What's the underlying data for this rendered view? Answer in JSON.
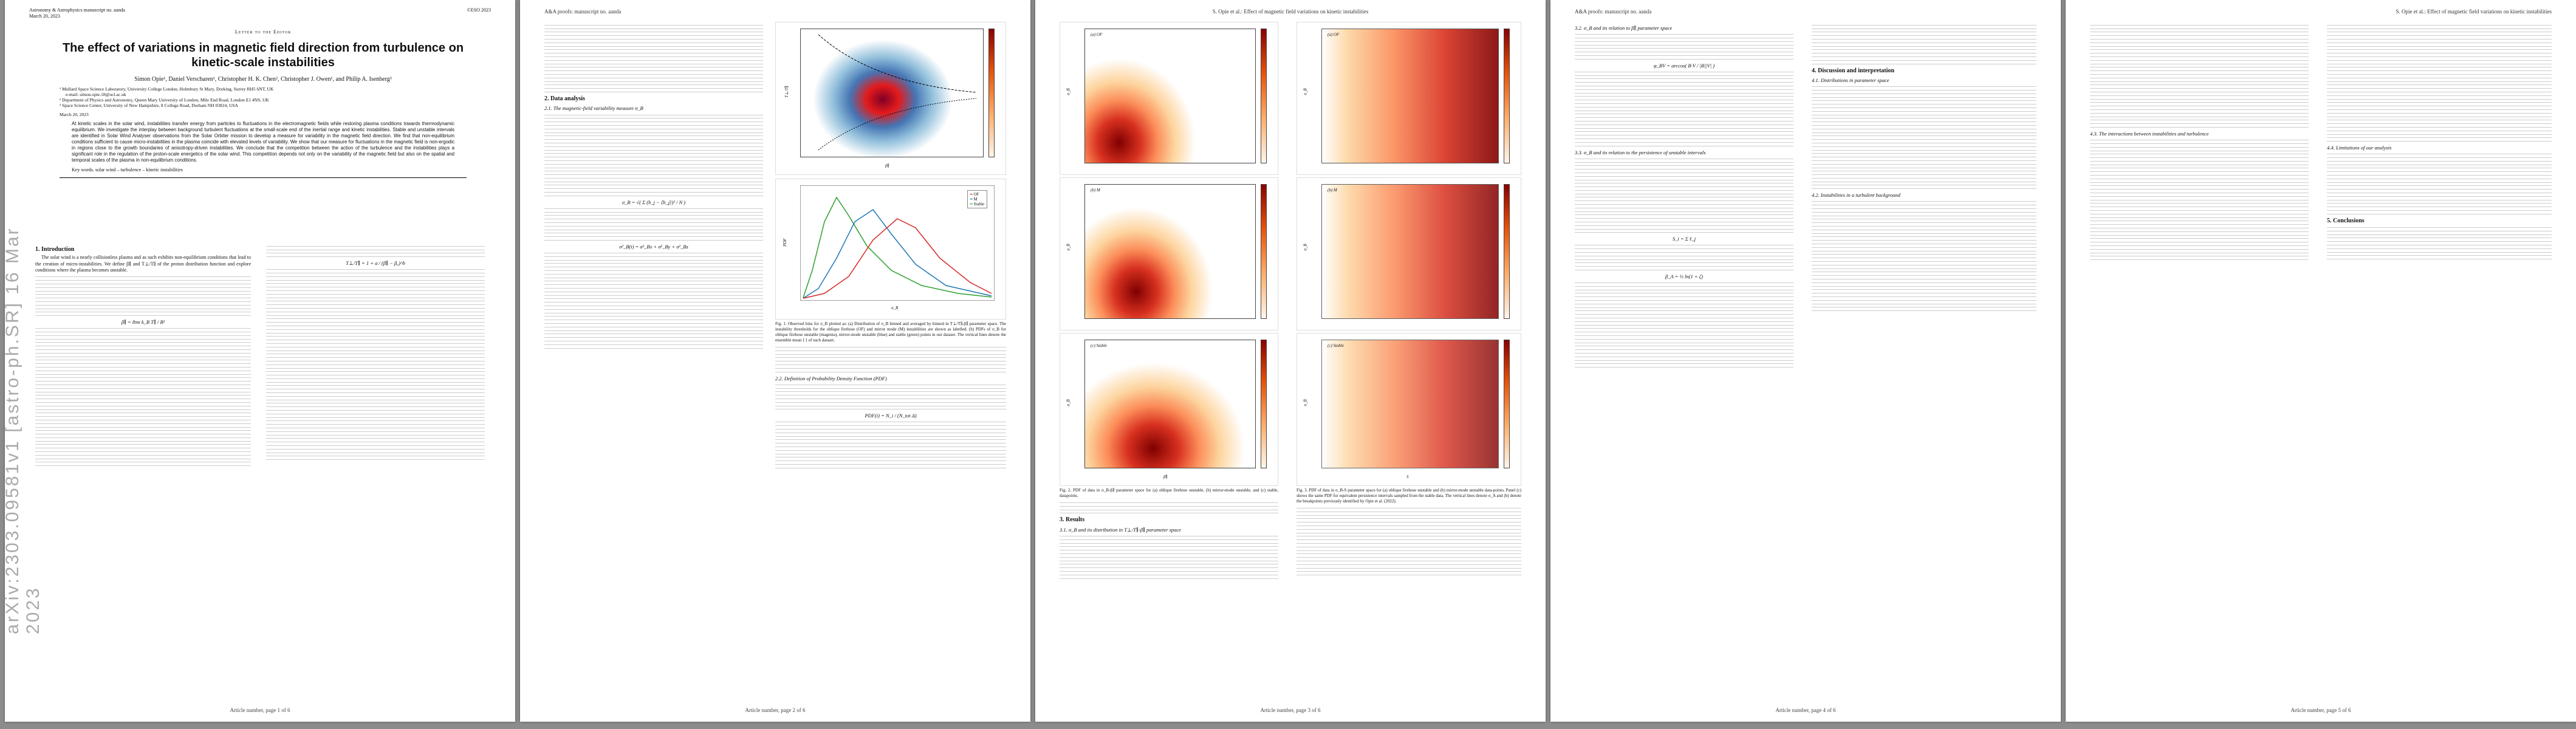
{
  "journal": "Astronomy & Astrophysics manuscript no. aanda",
  "date_header": "March 20, 2023",
  "copyright": "©ESO 2023",
  "running_header_left": "A&A proofs: manuscript no. aanda",
  "running_header_right": "S. Opie et al.: Effect of magnetic field variations on kinetic instabilities",
  "letter_label": "Letter to the Editor",
  "title": "The effect of variations in magnetic field direction from turbulence on kinetic-scale instabilities",
  "authors": "Simon Opie¹, Daniel Verscharen¹, Christopher H. K. Chen², Christopher J. Owen¹, and Philip A. Isenberg³",
  "affiliations": [
    "¹ Mullard Space Science Laboratory, University College London, Holmbury St Mary, Dorking, Surrey RH5 6NT, UK",
    "e-mail: simon.opie.18@ucl.ac.uk",
    "² Department of Physics and Astronomy, Queen Mary University of London, Mile End Road, London E1 4NS, UK",
    "³ Space Science Center, University of New Hampshire, 8 College Road, Durham NH 03824, USA"
  ],
  "date_line": "March 20, 2023",
  "abstract": "At kinetic scales in the solar wind, instabilities transfer energy from particles to fluctuations in the electromagnetic fields while restoring plasma conditions towards thermodynamic equilibrium. We investigate the interplay between background turbulent fluctuations at the small-scale end of the inertial range and kinetic instabilities. Stable and unstable intervals are identified in Solar Wind Analyser observations from the Solar Orbiter mission to develop a measure for variability in the magnetic field direction. We find that non-equilibrium conditions sufficient to cause micro-instabilities in the plasma coincide with elevated levels of variability. We show that our measure for fluctuations in the magnetic field is non-ergodic in regions close to the growth boundaries of anisotropy-driven instabilities. We conclude that the competition between the action of the turbulence and the instabilities plays a significant role in the regulation of the proton-scale energetics of the solar wind. This competition depends not only on the variability of the magnetic field but also on the spatial and temporal scales of the plasma in non-equilibrium conditions.",
  "keywords": "Key words. solar wind – turbulence – kinetic instabilities",
  "arxiv_id": "arXiv:2303.09581v1 [astro-ph.SR] 16 Mar 2023",
  "sections": {
    "intro": "1. Introduction",
    "data": "2. Data analysis",
    "data_sub1": "2.1. The magnetic-field variability measure σ_B",
    "data_sub2": "2.2. Definition of Probability Density Function (PDF)",
    "results": "3. Results",
    "res_sub1": "3.1. σ_B and its distribution in T⊥/T∥-β∥ parameter space",
    "res_sub2": "3.2. σ_B and its relation to β∥ parameter space",
    "res_sub3": "3.3. σ_B and its relation to the persistence of unstable intervals",
    "discussion": "4. Discussion and interpretation",
    "disc_sub1": "4.1. Distributions in parameter space",
    "disc_sub2": "4.2. Instabilities in a turbulent background",
    "disc_sub3": "4.3. The interactions between instabilities and turbulence",
    "disc_sub4": "4.4. Limitations of our analysis",
    "conclusions": "5. Conclusions"
  },
  "intro_para": "The solar wind is a nearly collisionless plasma and as such exhibits non-equilibrium conditions that lead to the creation of micro-instabilities. We define β∥ and T⊥/T∥ of the proton distribution function and explore conditions where the plasma becomes unstable.",
  "equations": {
    "eq1": "β∥ = 8πn k_B T∥ / B²",
    "eq2": "T⊥/T∥ = 1 + a / (β∥ − β₀)^b",
    "eq3": "σ_B = √( Σ (b_j − ⟨b_j⟩)² / N )",
    "eq4": "σ²_B(t) = σ²_Bx + σ²_By + σ²_Bz",
    "eq5": "PDF(i) = N_i / (N_tot Δ)",
    "eq6": "φ_BV = arccos( B·V / |B||V| )",
    "eq7": "S_i = Σ ℓ_j",
    "eq8": "β_A = ½ ln(1 + ζ)"
  },
  "figure_captions": {
    "fig1": "Fig. 1. Observed bins for σ_B plotted as: (a) Distribution of σ_B binned and averaged by binned in T⊥/T∥-β∥ parameter space. The instability thresholds for the oblique firehose (OF) and mirror mode (M) instabilities are shown as labelled. (b) PDFs of σ_B for oblique firehose unstable (magenta), mirror-mode unstable (blue) and stable (green) points in our dataset. The vertical lines denote the ensemble mean ⟨·⟩ of each dataset.",
    "fig2": "Fig. 2. PDF of data in σ_B-β∥ parameter space for (a) oblique firehose unstable, (b) mirror-mode unstable, and (c) stable, datapoints.",
    "fig3": "Fig. 3. PDF of data in σ_B-S parameter space for (a) oblique firehose unstable and (b) mirror-mode unstable data-points. Panel (c) shows the same PDF for equivalent persistence intervals sampled from the stable data. The vertical lines denote σ_A and (b) denote the breakpoints previously identified by Opie et al. (2022)."
  },
  "fig1_legend": [
    "OF",
    "M",
    "Stable"
  ],
  "fig1_axes": {
    "a_x": "β∥",
    "a_y": "T⊥/T∥",
    "b_x": "σ_B",
    "b_y": "PDF"
  },
  "fig2_axes": {
    "x": "β∥",
    "y": "σ_B",
    "labels": [
      "(a) OF",
      "(b) M",
      "(c) Stable"
    ]
  },
  "fig3_axes": {
    "x": "S",
    "y": "σ_B",
    "labels": [
      "(a) OF",
      "(b) M",
      "(c) Stable"
    ]
  },
  "footer": [
    "Article number, page 1 of 6",
    "Article number, page 2 of 6",
    "Article number, page 3 of 6",
    "Article number, page 4 of 6",
    "Article number, page 5 of 6"
  ]
}
